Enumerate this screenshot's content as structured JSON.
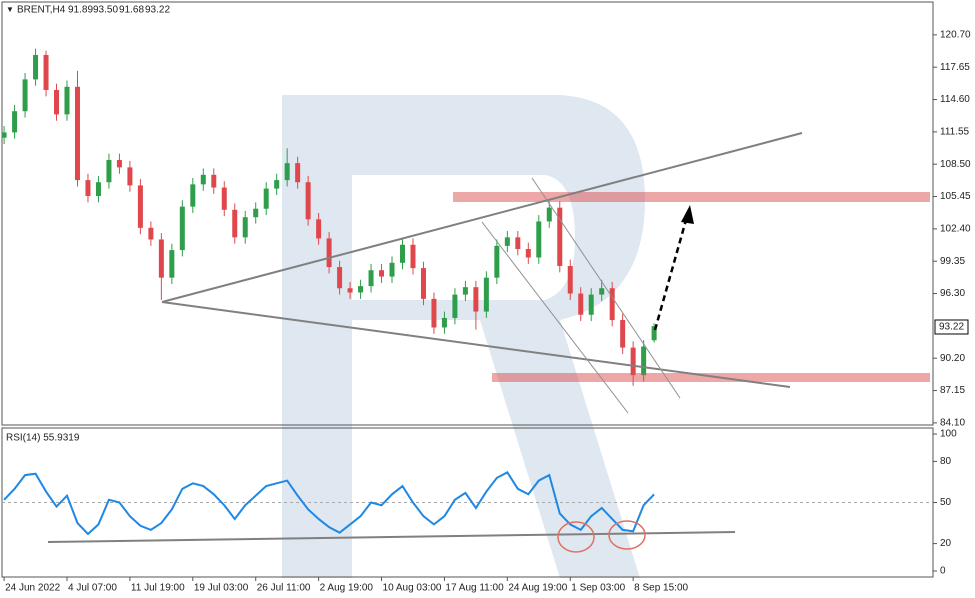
{
  "header": {
    "symbol": "BRENT,H4",
    "ohlc": [
      "91.89",
      "93.50",
      "91.68",
      "93.22"
    ]
  },
  "chart_data": [
    {
      "type": "candlestick",
      "up_color": "#2e9e4a",
      "down_color": "#e0474c",
      "xlim": [
        -0.2,
        88.6
      ],
      "ylim": [
        83.9,
        123.8
      ],
      "xticks": [
        {
          "value": 0,
          "label": "24 Jun 2022"
        },
        {
          "value": 6,
          "label": "4 Jul 07:00"
        },
        {
          "value": 12,
          "label": "11 Jul 19:00"
        },
        {
          "value": 18,
          "label": "19 Jul 03:00"
        },
        {
          "value": 24,
          "label": "26 Jul 11:00"
        },
        {
          "value": 30,
          "label": "2 Aug 19:00"
        },
        {
          "value": 36,
          "label": "10 Aug 03:00"
        },
        {
          "value": 42,
          "label": "17 Aug 11:00"
        },
        {
          "value": 48,
          "label": "24 Aug 19:00"
        },
        {
          "value": 54,
          "label": "1 Sep 03:00"
        },
        {
          "value": 60,
          "label": "8 Sep 15:00"
        }
      ],
      "yticks": [
        {
          "value": 120.7,
          "label": "120.70"
        },
        {
          "value": 117.65,
          "label": "117.65"
        },
        {
          "value": 114.6,
          "label": "114.60"
        },
        {
          "value": 111.55,
          "label": "111.55"
        },
        {
          "value": 108.5,
          "label": "108.50"
        },
        {
          "value": 105.45,
          "label": "105.45"
        },
        {
          "value": 102.4,
          "label": "102.40"
        },
        {
          "value": 99.35,
          "label": "99.35"
        },
        {
          "value": 96.3,
          "label": "96.30"
        },
        {
          "value": 90.2,
          "label": "90.20"
        },
        {
          "value": 87.15,
          "label": "87.15"
        },
        {
          "value": 84.1,
          "label": "84.10"
        }
      ],
      "candles": [
        [
          111,
          112.1,
          110.4,
          111.5
        ],
        [
          111.5,
          114.1,
          110.9,
          113.5
        ],
        [
          113.5,
          117.1,
          112.9,
          116.5
        ],
        [
          116.5,
          119.4,
          115.9,
          118.8
        ],
        [
          118.8,
          119.2,
          114.9,
          115.5
        ],
        [
          115.5,
          116.1,
          112.6,
          113.2
        ],
        [
          113.2,
          116.4,
          112.6,
          115.8
        ],
        [
          115.8,
          117.3,
          106.4,
          107
        ],
        [
          107,
          107.6,
          104.9,
          105.5
        ],
        [
          105.5,
          107.4,
          104.9,
          106.8
        ],
        [
          106.8,
          109.5,
          106.2,
          108.9
        ],
        [
          108.9,
          109.5,
          107.6,
          108.2
        ],
        [
          108.2,
          108.8,
          105.9,
          106.5
        ],
        [
          106.5,
          107.1,
          101.9,
          102.5
        ],
        [
          102.5,
          103.1,
          100.8,
          101.4
        ],
        [
          101.4,
          102,
          95.7,
          97.8
        ],
        [
          97.8,
          101,
          97.2,
          100.4
        ],
        [
          100.4,
          105.1,
          99.8,
          104.5
        ],
        [
          104.5,
          107.2,
          103.9,
          106.6
        ],
        [
          106.6,
          108.1,
          106,
          107.5
        ],
        [
          107.5,
          108.1,
          105.7,
          106.3
        ],
        [
          106.3,
          106.9,
          103.6,
          104.2
        ],
        [
          104.2,
          104.8,
          101,
          101.6
        ],
        [
          101.6,
          104.1,
          101,
          103.5
        ],
        [
          103.5,
          104.9,
          102.9,
          104.3
        ],
        [
          104.3,
          106.8,
          103.7,
          106.2
        ],
        [
          106.2,
          107.6,
          105.6,
          107
        ],
        [
          107,
          110,
          106.4,
          108.6
        ],
        [
          108.6,
          109.2,
          106.2,
          106.8
        ],
        [
          106.8,
          107.4,
          102.7,
          103.3
        ],
        [
          103.3,
          103.9,
          100.9,
          101.5
        ],
        [
          101.5,
          102.1,
          98.2,
          98.8
        ],
        [
          98.8,
          99.4,
          96.2,
          96.8
        ],
        [
          96.8,
          97.4,
          95.8,
          96.4
        ],
        [
          96.4,
          97.6,
          95.8,
          97
        ],
        [
          97,
          99.1,
          96.4,
          98.5
        ],
        [
          98.5,
          99.1,
          97.3,
          97.9
        ],
        [
          97.9,
          99.8,
          97.3,
          99.2
        ],
        [
          99.2,
          101.5,
          98.6,
          100.9
        ],
        [
          100.9,
          101.5,
          98.1,
          98.7
        ],
        [
          98.7,
          99.3,
          95.2,
          95.8
        ],
        [
          95.8,
          96.4,
          92.5,
          93.1
        ],
        [
          93.1,
          94.6,
          92.5,
          94
        ],
        [
          94,
          96.8,
          93.4,
          96.2
        ],
        [
          96.2,
          97.5,
          95.6,
          96.9
        ],
        [
          96.9,
          97.5,
          92.9,
          94.6
        ],
        [
          94.6,
          98.4,
          94,
          97.8
        ],
        [
          97.8,
          101.4,
          97.2,
          100.8
        ],
        [
          100.8,
          102.2,
          100.2,
          101.6
        ],
        [
          101.6,
          102.2,
          99.9,
          100.5
        ],
        [
          100.5,
          101.1,
          99.1,
          99.7
        ],
        [
          99.7,
          103.7,
          99.1,
          103.1
        ],
        [
          103.1,
          105,
          102.5,
          104.4
        ],
        [
          104.4,
          105,
          98.3,
          98.9
        ],
        [
          98.9,
          99.5,
          95.7,
          96.3
        ],
        [
          96.3,
          96.9,
          93.7,
          94.3
        ],
        [
          94.3,
          96.8,
          93.7,
          96.2
        ],
        [
          96.2,
          97.6,
          95.6,
          96.8
        ],
        [
          96.8,
          97.4,
          93.2,
          93.8
        ],
        [
          93.8,
          94.4,
          90.6,
          91.2
        ],
        [
          91.2,
          91.8,
          87.6,
          88.6
        ],
        [
          88.6,
          91.9,
          88,
          91.3
        ],
        [
          91.89,
          93.5,
          91.68,
          93.22
        ]
      ]
    },
    {
      "type": "line",
      "title": "RSI(14) 55.9319",
      "color": "#1e88e5",
      "xlim": [
        -0.2,
        88.6
      ],
      "ylim": [
        -4.4,
        104.4
      ],
      "yticks": [
        100,
        80,
        50,
        20,
        0
      ],
      "values": [
        52,
        60,
        70,
        71,
        58,
        47,
        55,
        35,
        27,
        34,
        52,
        50,
        40,
        33,
        30,
        35,
        45,
        60,
        64,
        62,
        56,
        48,
        38,
        48,
        55,
        62,
        64,
        66,
        55,
        45,
        38,
        32,
        28,
        34,
        40,
        50,
        48,
        56,
        62,
        50,
        40,
        34,
        40,
        52,
        57,
        46,
        58,
        68,
        72,
        60,
        56,
        66,
        70,
        42,
        34,
        30,
        40,
        46,
        38,
        30,
        29,
        48,
        55.9319
      ]
    }
  ]
}
